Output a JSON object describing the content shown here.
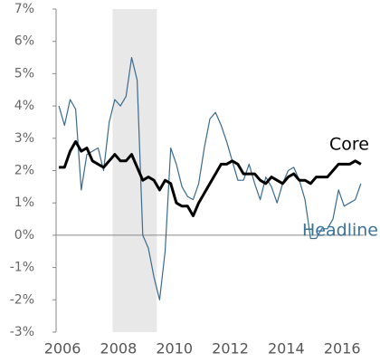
{
  "chart_data": {
    "type": "line",
    "x": [
      2006.0,
      2006.2,
      2006.4,
      2006.6,
      2006.8,
      2007.0,
      2007.2,
      2007.4,
      2007.6,
      2007.8,
      2008.0,
      2008.2,
      2008.4,
      2008.6,
      2008.8,
      2009.0,
      2009.2,
      2009.4,
      2009.6,
      2009.8,
      2010.0,
      2010.2,
      2010.4,
      2010.6,
      2010.8,
      2011.0,
      2011.2,
      2011.4,
      2011.6,
      2011.8,
      2012.0,
      2012.2,
      2012.4,
      2012.6,
      2012.8,
      2013.0,
      2013.2,
      2013.4,
      2013.6,
      2013.8,
      2014.0,
      2014.2,
      2014.4,
      2014.6,
      2014.8,
      2015.0,
      2015.2,
      2015.4,
      2015.6,
      2015.8,
      2016.0,
      2016.2,
      2016.4,
      2016.6,
      2016.8
    ],
    "series": [
      {
        "name": "Headline",
        "color": "#3a6a8c",
        "label_color": "#3b7399",
        "values": [
          4.0,
          3.4,
          4.2,
          3.9,
          1.4,
          2.5,
          2.6,
          2.7,
          2.0,
          3.5,
          4.2,
          4.0,
          4.3,
          5.5,
          4.8,
          0.0,
          -0.4,
          -1.3,
          -2.0,
          -0.5,
          2.7,
          2.2,
          1.5,
          1.2,
          1.1,
          1.6,
          2.7,
          3.6,
          3.8,
          3.4,
          2.9,
          2.3,
          1.7,
          1.7,
          2.2,
          1.6,
          1.1,
          1.8,
          1.5,
          1.0,
          1.6,
          2.0,
          2.1,
          1.7,
          1.1,
          -0.1,
          -0.1,
          0.2,
          0.2,
          0.5,
          1.4,
          0.9,
          1.0,
          1.1,
          1.6
        ]
      },
      {
        "name": "Core",
        "color": "#000000",
        "label_color": "#000000",
        "values": [
          2.1,
          2.1,
          2.6,
          2.9,
          2.6,
          2.7,
          2.3,
          2.2,
          2.1,
          2.3,
          2.5,
          2.3,
          2.3,
          2.5,
          2.1,
          1.7,
          1.8,
          1.7,
          1.4,
          1.7,
          1.6,
          1.0,
          0.9,
          0.9,
          0.6,
          1.0,
          1.3,
          1.6,
          1.9,
          2.2,
          2.2,
          2.3,
          2.2,
          1.9,
          1.9,
          1.9,
          1.7,
          1.6,
          1.8,
          1.7,
          1.6,
          1.8,
          1.9,
          1.7,
          1.7,
          1.6,
          1.8,
          1.8,
          1.8,
          2.0,
          2.2,
          2.2,
          2.2,
          2.3,
          2.2
        ]
      }
    ],
    "recession": [
      2007.92,
      2009.5
    ],
    "xlim": [
      2005.9,
      2016.9
    ],
    "xticks": [
      2006,
      2008,
      2010,
      2012,
      2014,
      2016
    ],
    "ylim": [
      -3,
      7
    ],
    "yticks": [
      {
        "value": -3,
        "label": "-3%"
      },
      {
        "value": -2,
        "label": "-2%"
      },
      {
        "value": -1,
        "label": "-1%"
      },
      {
        "value": 0,
        "label": "0%"
      },
      {
        "value": 1,
        "label": "1%"
      },
      {
        "value": 2,
        "label": "2%"
      },
      {
        "value": 3,
        "label": "3%"
      },
      {
        "value": 4,
        "label": "4%"
      },
      {
        "value": 5,
        "label": "5%"
      },
      {
        "value": 6,
        "label": "6%"
      },
      {
        "value": 7,
        "label": "7%"
      }
    ]
  }
}
